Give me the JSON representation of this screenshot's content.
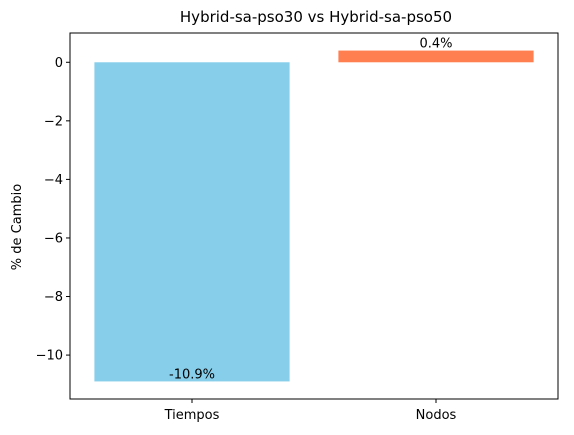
{
  "chart_data": {
    "type": "bar",
    "title": "Hybrid-sa-pso30 vs Hybrid-sa-pso50",
    "xlabel": "",
    "ylabel": "% de Cambio",
    "categories": [
      "Tiempos",
      "Nodos"
    ],
    "values": [
      -10.9,
      0.4
    ],
    "data_labels": [
      "-10.9%",
      "0.4%"
    ],
    "bar_colors": [
      "#87ceeb",
      "#ff7f50"
    ],
    "ylim": [
      -11.5,
      1.0
    ],
    "yticks": [
      0,
      -2,
      -4,
      -6,
      -8,
      -10
    ],
    "ytick_labels": [
      "0",
      "−2",
      "−4",
      "−6",
      "−8",
      "−10"
    ],
    "grid": false,
    "legend": "none"
  }
}
